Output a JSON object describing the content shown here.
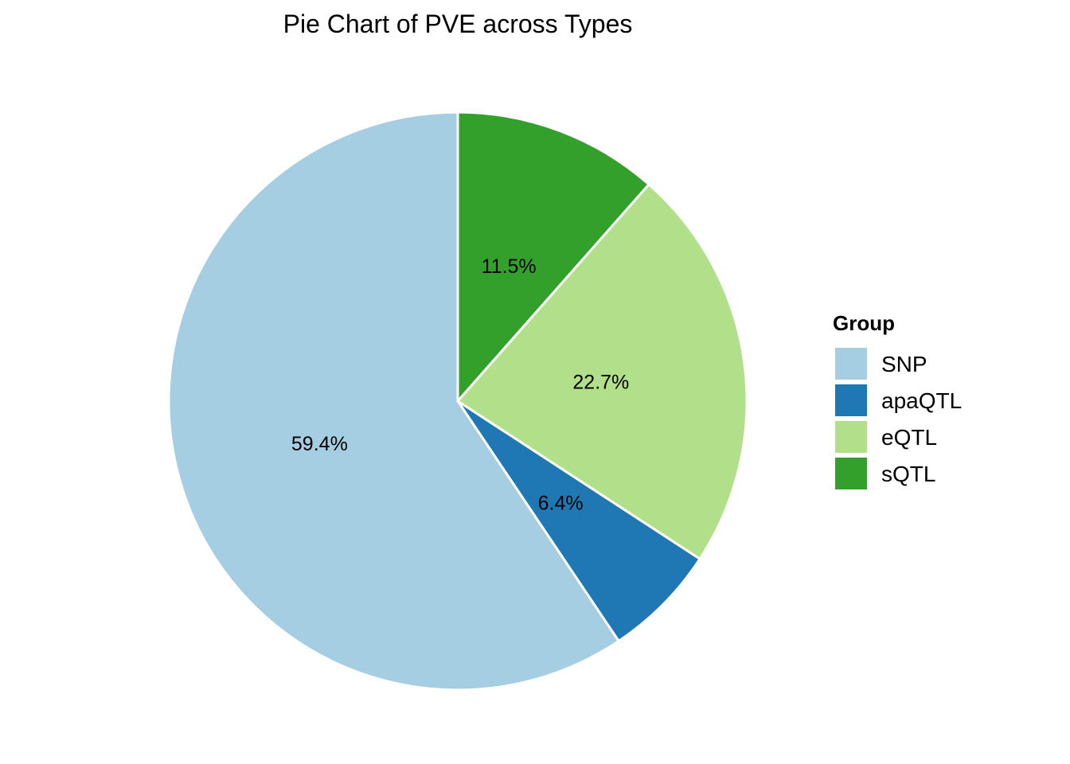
{
  "chart_data": {
    "type": "pie",
    "title": "Pie Chart of PVE across Types",
    "legend": {
      "title": "Group",
      "placement": "right"
    },
    "slices": [
      {
        "name": "SNP",
        "value": 59.4,
        "label": "59.4%",
        "color": "#A6CEE3"
      },
      {
        "name": "apaQTL",
        "value": 6.4,
        "label": "6.4%",
        "color": "#1F78B4"
      },
      {
        "name": "eQTL",
        "value": 22.7,
        "label": "22.7%",
        "color": "#B2DF8A"
      },
      {
        "name": "sQTL",
        "value": 11.5,
        "label": "11.5%",
        "color": "#33A02C"
      }
    ],
    "slice_border_color": "#FFFFFF"
  }
}
